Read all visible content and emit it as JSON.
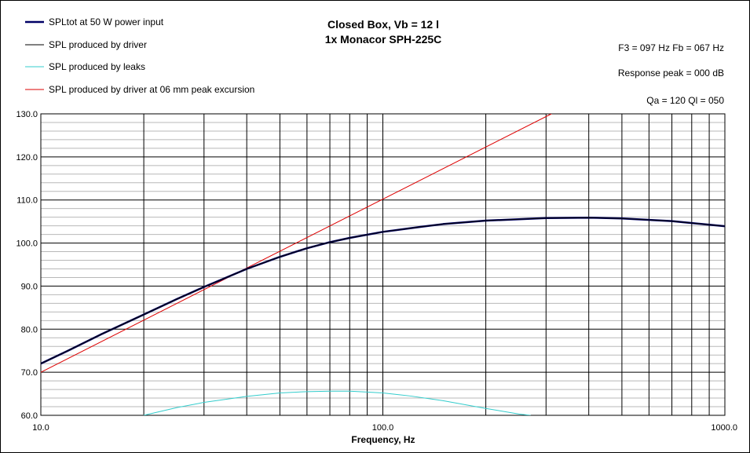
{
  "chart_data": {
    "type": "line",
    "title_lines": [
      "Closed Box, Vb = 12 l",
      "1x Monacor SPH-225C"
    ],
    "xlabel": "Frequency, Hz",
    "ylabel": "",
    "x_scale": "log",
    "xlim": [
      10,
      1000
    ],
    "ylim": [
      60,
      130
    ],
    "x_tick_labels": [
      {
        "value": 10,
        "label": "10.0"
      },
      {
        "value": 100,
        "label": "100.0"
      },
      {
        "value": 1000,
        "label": "1000.0"
      }
    ],
    "y_ticks": [
      60,
      70,
      80,
      90,
      100,
      110,
      120,
      130
    ],
    "y_tick_labels": [
      "60.0",
      "70.0",
      "80.0",
      "90.0",
      "100.0",
      "110.0",
      "120.0",
      "130.0"
    ],
    "grid": true,
    "legend_position": "top-left",
    "info": [
      "F3 = 097 Hz  Fb = 067 Hz",
      "Response peak = 000 dB",
      "Qa = 120  Ql = 050"
    ],
    "series": [
      {
        "name": "SPLtot at 50 W power input",
        "color": "#000066",
        "width": 2.5,
        "x": [
          10,
          12,
          15,
          20,
          25,
          30,
          40,
          50,
          60,
          70,
          80,
          100,
          130,
          150,
          200,
          300,
          400,
          500,
          700,
          1000
        ],
        "y": [
          72.0,
          75.0,
          78.8,
          83.4,
          87.0,
          89.8,
          94.0,
          96.8,
          98.8,
          100.2,
          101.2,
          102.6,
          103.8,
          104.4,
          105.2,
          105.8,
          105.9,
          105.7,
          105.1,
          103.9
        ]
      },
      {
        "name": "SPL produced by driver",
        "color": "#000000",
        "width": 1,
        "x": [
          10,
          12,
          15,
          20,
          25,
          30,
          40,
          50,
          60,
          70,
          80,
          100,
          130,
          150,
          200,
          300,
          400,
          500,
          700,
          1000
        ],
        "y": [
          72.0,
          75.0,
          78.8,
          83.4,
          87.0,
          89.8,
          94.0,
          96.8,
          98.8,
          100.2,
          101.2,
          102.6,
          103.8,
          104.4,
          105.2,
          105.8,
          105.9,
          105.7,
          105.1,
          103.9
        ]
      },
      {
        "name": "SPL produced by leaks",
        "color": "#33CCCC",
        "width": 1,
        "x": [
          20,
          25,
          30,
          40,
          50,
          60,
          70,
          80,
          90,
          100,
          120,
          150,
          200,
          250,
          270
        ],
        "y": [
          60.0,
          61.8,
          63.0,
          64.4,
          65.2,
          65.5,
          65.6,
          65.6,
          65.4,
          65.2,
          64.5,
          63.4,
          61.6,
          60.3,
          60.0
        ]
      },
      {
        "name": "SPL produced by driver at 06 mm peak excursion",
        "color": "#DD0000",
        "width": 1,
        "x": [
          10,
          311
        ],
        "y": [
          70.0,
          130.0
        ]
      }
    ]
  }
}
